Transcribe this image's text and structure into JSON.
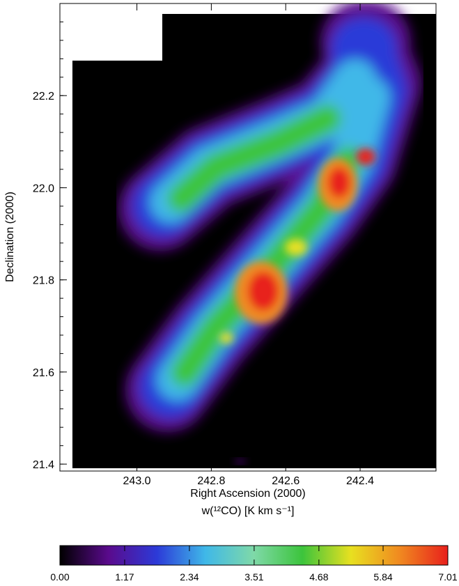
{
  "chart_data": {
    "type": "heatmap",
    "x_label": "Right Ascension (2000)",
    "y_label": "Declination (2000)",
    "xlim": [
      243.207,
      242.196
    ],
    "ylim": [
      21.385,
      22.4
    ],
    "xticks": [
      {
        "value": 243.0,
        "label": "243.0"
      },
      242.8,
      242.6,
      242.4
    ],
    "yticks": [
      {
        "value": 21.4,
        "label": "21.4"
      },
      21.6,
      21.8,
      {
        "value": 22.0,
        "label": "22.0"
      },
      22.2
    ],
    "colorbar": {
      "label": "w(¹²CO)  [K km s⁻¹]",
      "lim": [
        0,
        7.01
      ],
      "ticks": [
        {
          "value": 0,
          "label": "0.00"
        },
        1.17,
        2.34,
        3.51,
        4.68,
        5.84,
        7.01
      ],
      "colors": [
        "#000000",
        "#5a0a8c",
        "#2c3ad8",
        "#3fb8e8",
        "#7fd9a8",
        "#3cc43c",
        "#e8e020",
        "#f08a20",
        "#e8201c"
      ]
    }
  }
}
